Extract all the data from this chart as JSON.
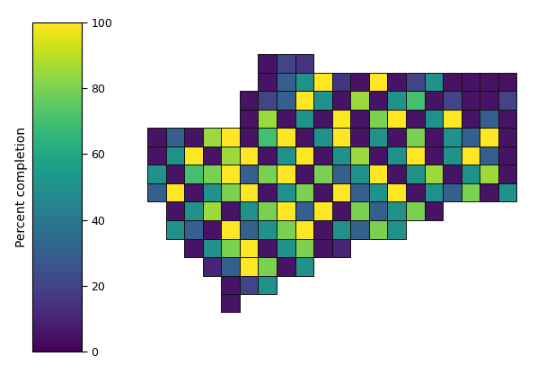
{
  "colormap": "viridis",
  "vmin": 0,
  "vmax": 100,
  "colorbar_label": "Percent completion",
  "colorbar_ticks": [
    0,
    20,
    40,
    60,
    80,
    100
  ],
  "figsize": [
    6.08,
    4.16
  ],
  "dpi": 100,
  "grid": [
    [
      -1,
      -1,
      -1,
      -1,
      -1,
      -1,
      5,
      20,
      15,
      -1,
      -1,
      -1,
      -1,
      -1,
      -1,
      -1,
      -1,
      -1,
      -1,
      -1,
      -1
    ],
    [
      -1,
      -1,
      -1,
      -1,
      -1,
      -1,
      5,
      30,
      50,
      100,
      15,
      5,
      100,
      5,
      20,
      50,
      5,
      5,
      5,
      5,
      -1
    ],
    [
      -1,
      -1,
      -1,
      -1,
      -1,
      5,
      20,
      30,
      100,
      50,
      5,
      85,
      5,
      50,
      70,
      5,
      20,
      5,
      5,
      20,
      -1
    ],
    [
      -1,
      -1,
      -1,
      -1,
      -1,
      5,
      85,
      5,
      50,
      5,
      100,
      5,
      80,
      100,
      5,
      50,
      100,
      5,
      30,
      5,
      -1
    ],
    [
      5,
      30,
      5,
      85,
      100,
      5,
      70,
      100,
      5,
      50,
      100,
      5,
      50,
      5,
      80,
      5,
      50,
      30,
      100,
      5,
      -1
    ],
    [
      5,
      50,
      100,
      5,
      85,
      100,
      5,
      50,
      100,
      5,
      50,
      85,
      5,
      50,
      100,
      5,
      50,
      100,
      30,
      5,
      -1
    ],
    [
      50,
      5,
      70,
      80,
      100,
      30,
      80,
      100,
      5,
      80,
      30,
      50,
      100,
      5,
      50,
      85,
      5,
      50,
      85,
      5,
      -1
    ],
    [
      30,
      100,
      5,
      50,
      80,
      100,
      5,
      50,
      80,
      5,
      100,
      30,
      50,
      100,
      5,
      50,
      30,
      80,
      5,
      50,
      -1
    ],
    [
      -1,
      5,
      50,
      85,
      5,
      50,
      80,
      100,
      30,
      100,
      5,
      80,
      30,
      50,
      80,
      5,
      -1,
      -1,
      -1,
      -1,
      -1
    ],
    [
      -1,
      50,
      30,
      5,
      100,
      30,
      50,
      80,
      100,
      5,
      50,
      30,
      80,
      50,
      -1,
      -1,
      -1,
      -1,
      -1,
      -1,
      -1
    ],
    [
      -1,
      -1,
      5,
      50,
      80,
      100,
      5,
      50,
      80,
      5,
      10,
      -1,
      -1,
      -1,
      -1,
      -1,
      -1,
      -1,
      -1,
      -1,
      -1
    ],
    [
      -1,
      -1,
      -1,
      10,
      30,
      100,
      80,
      5,
      50,
      -1,
      -1,
      -1,
      -1,
      -1,
      -1,
      -1,
      -1,
      -1,
      -1,
      -1,
      -1
    ],
    [
      -1,
      -1,
      -1,
      -1,
      5,
      20,
      50,
      -1,
      -1,
      -1,
      -1,
      -1,
      -1,
      -1,
      -1,
      -1,
      -1,
      -1,
      -1,
      -1,
      -1
    ],
    [
      -1,
      -1,
      -1,
      -1,
      5,
      -1,
      -1,
      -1,
      -1,
      -1,
      -1,
      -1,
      -1,
      -1,
      -1,
      -1,
      -1,
      -1,
      -1,
      -1,
      -1
    ]
  ]
}
